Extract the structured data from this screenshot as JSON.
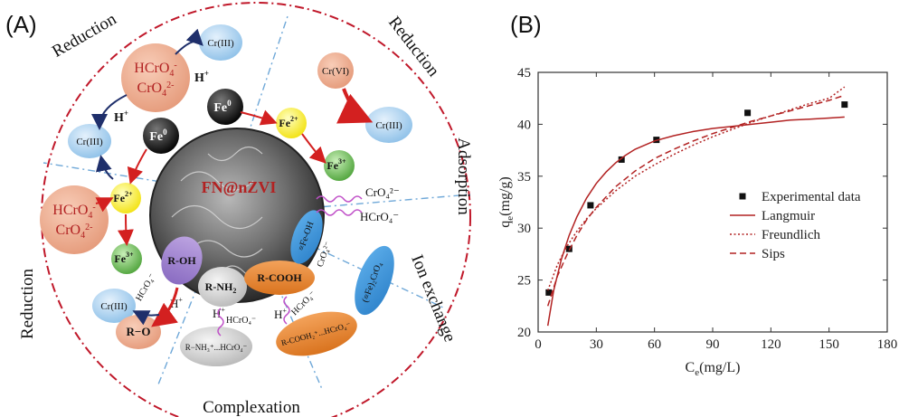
{
  "panel_a": {
    "label": "(A)",
    "center_label": "FN@nZVI",
    "sectors": {
      "reduction_top_left": "Reduction",
      "reduction_top_right": "Reduction",
      "adsorption": "Adsorption",
      "ion_exchange": "Ion exchange",
      "complexation": "Complexation",
      "reduction_left": "Reduction"
    },
    "species": {
      "hcro4": "HCrO",
      "hcro4_sup": "4",
      "hcro4_charge": "-",
      "cro4": "CrO",
      "cro4_sub": "4",
      "cro4_charge": "2-",
      "cr3": "Cr(III)",
      "cr6": "Cr(VI)",
      "fe0": "Fe",
      "fe0_sup": "0",
      "fe2": "Fe",
      "fe2_sup": "2+",
      "fe3": "Fe",
      "fe3_sup": "3+",
      "h_plus": "H",
      "h_plus_sup": "+",
      "roh": "R-OH",
      "rnh2": "R-NH",
      "rnh2_sub": "2",
      "rcooh": "R-COOH",
      "feoh": "≡Fe-OH",
      "ro": "R−O",
      "fe2cro4": "(≡Fe)₂CrO₄",
      "rnh3": "R−NH₃⁺...HCrO₄⁻",
      "rcooh2": "R-COOH₂⁺...HCrO₄⁻",
      "hcro4_small": "HCrO₄⁻",
      "cro4_small": "CrO₄²⁻"
    }
  },
  "panel_b": {
    "label": "(B)"
  },
  "chart_data": {
    "type": "scatter",
    "xlabel": "C",
    "xlabel_sub": "e",
    "xlabel_unit": "(mg/L)",
    "ylabel": "q",
    "ylabel_sub": "e",
    "ylabel_unit": "(mg/g)",
    "xlim": [
      0,
      180
    ],
    "ylim": [
      20,
      45
    ],
    "xticks": [
      0,
      30,
      60,
      90,
      120,
      150,
      180
    ],
    "yticks": [
      20,
      25,
      30,
      35,
      40,
      45
    ],
    "legend_position": "center-right",
    "series": [
      {
        "name": "Experimental data",
        "kind": "points",
        "color": "#111111",
        "points": [
          [
            5.5,
            23.8
          ],
          [
            16,
            28.0
          ],
          [
            27,
            32.2
          ],
          [
            43,
            36.6
          ],
          [
            61,
            38.5
          ],
          [
            108,
            41.1
          ],
          [
            158,
            41.9
          ]
        ]
      },
      {
        "name": "Langmuir",
        "kind": "line",
        "dash": "solid",
        "color": "#b22222",
        "points": [
          [
            5,
            20.6
          ],
          [
            8,
            24.0
          ],
          [
            12,
            27.0
          ],
          [
            16,
            29.3
          ],
          [
            20,
            31.1
          ],
          [
            25,
            32.9
          ],
          [
            30,
            34.3
          ],
          [
            35,
            35.4
          ],
          [
            40,
            36.3
          ],
          [
            45,
            37.0
          ],
          [
            50,
            37.6
          ],
          [
            60,
            38.4
          ],
          [
            70,
            38.9
          ],
          [
            80,
            39.3
          ],
          [
            90,
            39.6
          ],
          [
            100,
            39.8
          ],
          [
            110,
            40.0
          ],
          [
            120,
            40.2
          ],
          [
            130,
            40.4
          ],
          [
            140,
            40.5
          ],
          [
            150,
            40.6
          ],
          [
            158,
            40.7
          ]
        ]
      },
      {
        "name": "Freundlich",
        "kind": "line",
        "dash": "dotted",
        "color": "#b22222",
        "points": [
          [
            5,
            24.0
          ],
          [
            10,
            26.5
          ],
          [
            15,
            28.3
          ],
          [
            20,
            29.7
          ],
          [
            25,
            30.9
          ],
          [
            30,
            31.9
          ],
          [
            40,
            33.6
          ],
          [
            50,
            35.0
          ],
          [
            60,
            36.1
          ],
          [
            70,
            37.1
          ],
          [
            80,
            38.0
          ],
          [
            90,
            38.8
          ],
          [
            100,
            39.5
          ],
          [
            110,
            40.2
          ],
          [
            120,
            40.8
          ],
          [
            130,
            41.4
          ],
          [
            140,
            42.0
          ],
          [
            150,
            42.5
          ],
          [
            158,
            43.6
          ]
        ]
      },
      {
        "name": "Sips",
        "kind": "line",
        "dash": "dashed",
        "color": "#b22222",
        "points": [
          [
            5,
            22.5
          ],
          [
            10,
            25.4
          ],
          [
            15,
            27.5
          ],
          [
            20,
            29.3
          ],
          [
            25,
            30.8
          ],
          [
            30,
            32.0
          ],
          [
            40,
            34.0
          ],
          [
            50,
            35.5
          ],
          [
            60,
            36.7
          ],
          [
            70,
            37.6
          ],
          [
            80,
            38.4
          ],
          [
            90,
            39.1
          ],
          [
            100,
            39.7
          ],
          [
            110,
            40.3
          ],
          [
            120,
            40.8
          ],
          [
            130,
            41.3
          ],
          [
            140,
            41.8
          ],
          [
            150,
            42.3
          ],
          [
            158,
            42.8
          ]
        ]
      }
    ]
  }
}
